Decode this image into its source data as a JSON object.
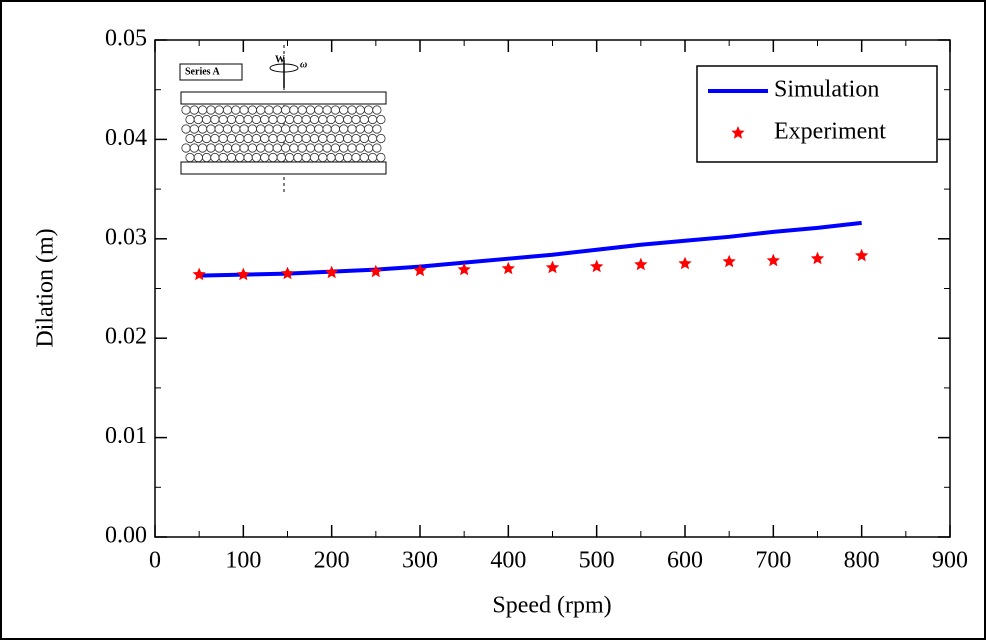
{
  "chart_data": {
    "type": "line",
    "xlabel": "Speed (rpm)",
    "ylabel": "Dilation (m)",
    "x": [
      50,
      100,
      150,
      200,
      250,
      300,
      350,
      400,
      450,
      500,
      550,
      600,
      650,
      700,
      750,
      800
    ],
    "series": [
      {
        "name": "Simulation",
        "color": "#0000ff",
        "style": "line",
        "values": [
          0.0263,
          0.0264,
          0.0265,
          0.0267,
          0.0269,
          0.0272,
          0.0276,
          0.028,
          0.0284,
          0.0289,
          0.0294,
          0.0298,
          0.0302,
          0.0307,
          0.0311,
          0.0316
        ]
      },
      {
        "name": "Experiment",
        "color": "#ff0000",
        "style": "star",
        "values": [
          0.0264,
          0.0264,
          0.0265,
          0.0266,
          0.0267,
          0.0268,
          0.0269,
          0.027,
          0.0271,
          0.0272,
          0.0274,
          0.0275,
          0.0277,
          0.0278,
          0.028,
          0.0283
        ]
      }
    ],
    "xlim": [
      0,
      900
    ],
    "xticks": [
      0,
      100,
      200,
      300,
      400,
      500,
      600,
      700,
      800,
      900
    ],
    "ylim": [
      0,
      0.05
    ],
    "yticks": [
      {
        "value": 0,
        "label": "0.00"
      },
      0.01,
      0.02,
      0.03,
      0.04,
      0.05
    ],
    "legend": "upper right",
    "inset_labels": [
      "Series A",
      "W",
      "ω"
    ]
  }
}
